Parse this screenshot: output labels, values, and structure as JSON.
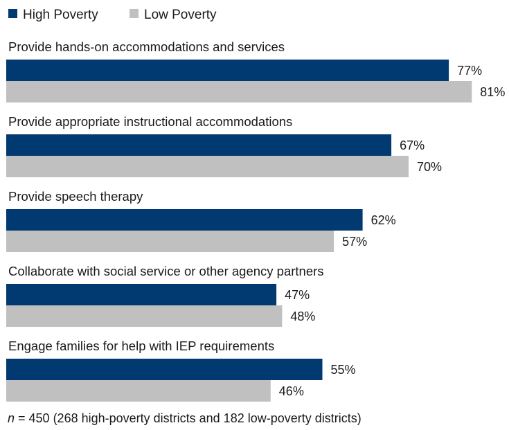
{
  "chart_data": {
    "type": "bar",
    "orientation": "horizontal",
    "legend_position": "top-left",
    "grid": false,
    "xlim": [
      0,
      100
    ],
    "value_suffix": "%",
    "categories": [
      "Provide hands-on accommodations and services",
      "Provide appropriate instructional accommodations",
      "Provide speech therapy",
      "Collaborate with social service or other agency partners",
      "Engage families for help with IEP requirements"
    ],
    "series": [
      {
        "name": "High Poverty",
        "color": "#003a70",
        "values": [
          77,
          67,
          62,
          47,
          55
        ]
      },
      {
        "name": "Low Poverty",
        "color": "#c0c0c0",
        "values": [
          81,
          70,
          57,
          48,
          46
        ]
      }
    ]
  },
  "footnote": {
    "n_symbol": "n",
    "text": " = 450 (268 high-poverty districts and 182 low-poverty districts)"
  }
}
